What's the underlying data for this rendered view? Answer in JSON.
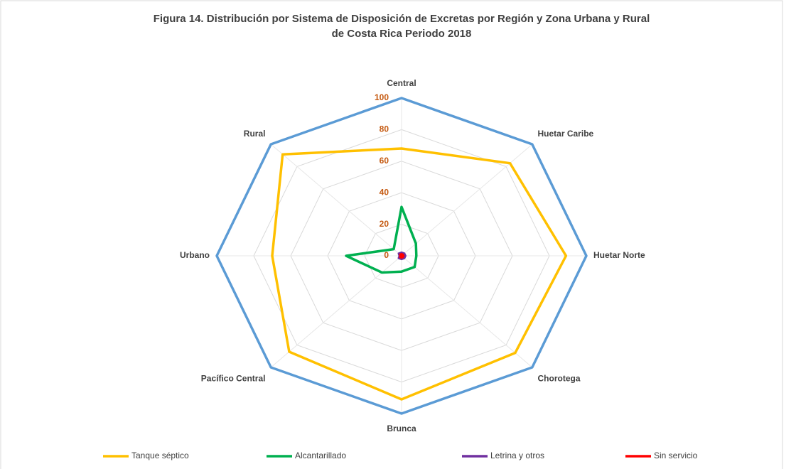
{
  "chart_data": {
    "type": "radar",
    "title": "Figura 14. Distribución por Sistema de Disposición de Excretas por Región y Zona Urbana y Rural de Costa Rica Periodo 2018",
    "categories": [
      "Central",
      "Huetar Caribe",
      "Huetar Norte",
      "Chorotega",
      "Brunca",
      "Pacífico Central",
      "Urbano",
      "Rural"
    ],
    "series": [
      {
        "color": "#5b9bd5",
        "values": [
          100,
          100,
          100,
          100,
          100,
          100,
          100,
          100
        ]
      },
      {
        "name": "Tanque séptico",
        "color": "#ffc000",
        "values": [
          68,
          83,
          89,
          87,
          91,
          86,
          70,
          91
        ]
      },
      {
        "name": "Alcantarillado",
        "color": "#00b050",
        "values": [
          31,
          11,
          8,
          10,
          10,
          15,
          30,
          6
        ]
      },
      {
        "name": "Letrina y otros",
        "color": "#7030a0",
        "values": [
          2,
          2,
          2,
          2,
          2,
          2,
          1,
          2
        ]
      },
      {
        "name": "Sin servicio",
        "color": "#ff0000",
        "values": [
          1,
          1,
          1,
          1,
          1,
          1,
          0,
          1
        ]
      }
    ],
    "ylim": [
      0,
      100
    ],
    "yticks": [
      0,
      20,
      40,
      60,
      80,
      100
    ],
    "grid": true,
    "legend": "bottom"
  }
}
